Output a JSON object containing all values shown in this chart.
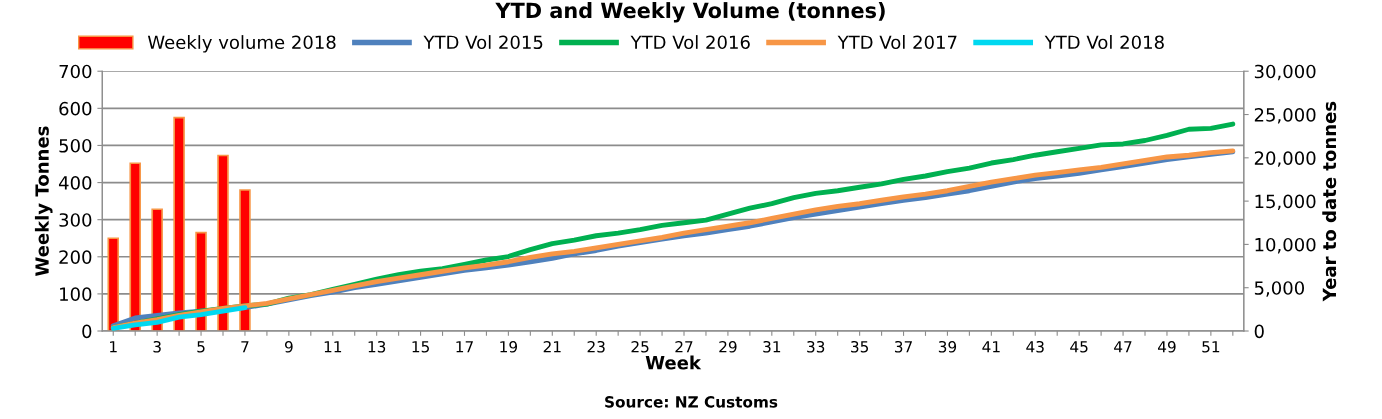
{
  "chart_data": {
    "type": "line",
    "title": "YTD and Weekly Volume (tonnes)",
    "xlabel": "Week",
    "ylabel": "Weekly Tonnes",
    "y2label": "Year to date tonnes",
    "annotations": [
      "Source: NZ Customs"
    ],
    "categories": [
      "1",
      null,
      "3",
      null,
      "5",
      null,
      "7",
      null,
      "9",
      null,
      "11",
      null,
      "13",
      null,
      "15",
      null,
      "17",
      null,
      "19",
      null,
      "21",
      null,
      "23",
      null,
      "25",
      null,
      "27",
      null,
      "29",
      null,
      "31",
      null,
      "33",
      null,
      "35",
      null,
      "37",
      null,
      "39",
      null,
      "41",
      null,
      "43",
      null,
      "45",
      null,
      "47",
      null,
      "49",
      null,
      "51",
      null
    ],
    "ylim": [
      0,
      700
    ],
    "yticks": [
      0,
      100,
      200,
      300,
      400,
      500,
      600,
      700
    ],
    "y2lim": [
      0,
      30000
    ],
    "y2ticks": [
      {
        "value": 0,
        "label": "0"
      },
      {
        "value": 5000,
        "label": "5,000"
      },
      {
        "value": 10000,
        "label": "10,000"
      },
      {
        "value": 15000,
        "label": "15,000"
      },
      {
        "value": 20000,
        "label": "20,000"
      },
      {
        "value": 25000,
        "label": "25,000"
      },
      {
        "value": 30000,
        "label": "30,000"
      }
    ],
    "grid": "y",
    "legend": "top",
    "marker": "none",
    "line_style": "solid",
    "series": [
      {
        "name": "Weekly volume 2018",
        "type": "bar",
        "color": "#ff0000",
        "values": [
          250,
          452,
          328,
          575,
          265,
          473,
          380,
          null,
          null,
          null,
          null,
          null,
          null,
          null,
          null,
          null,
          null,
          null,
          null,
          null,
          null,
          null,
          null,
          null,
          null,
          null,
          null,
          null,
          null,
          null,
          null,
          null,
          null,
          null,
          null,
          null,
          null,
          null,
          null,
          null,
          null,
          null,
          null,
          null,
          null,
          null,
          null,
          null,
          null,
          null,
          null,
          null
        ]
      },
      {
        "name": "YTD Vol 2015",
        "axis": "y2",
        "color": "#4f81bd",
        "values": [
          600,
          1500,
          1800,
          2100,
          2300,
          2500,
          2700,
          3100,
          3600,
          4100,
          4500,
          5000,
          5400,
          5800,
          6200,
          6600,
          7000,
          7300,
          7600,
          8000,
          8400,
          8900,
          9300,
          9800,
          10200,
          10600,
          11000,
          11300,
          11700,
          12100,
          12600,
          13100,
          13500,
          13900,
          14300,
          14700,
          15100,
          15400,
          15800,
          16200,
          16700,
          17200,
          17600,
          17900,
          18200,
          18600,
          19000,
          19400,
          19800,
          20100,
          20400,
          20700
        ]
      },
      {
        "name": "YTD Vol 2016",
        "axis": "y2",
        "color": "#00b050",
        "values": [
          400,
          900,
          1400,
          1900,
          2300,
          2600,
          2900,
          3100,
          3800,
          4200,
          4800,
          5400,
          6000,
          6500,
          6900,
          7200,
          7700,
          8200,
          8600,
          9400,
          10100,
          10500,
          11000,
          11300,
          11700,
          12200,
          12500,
          12800,
          13500,
          14200,
          14700,
          15400,
          15900,
          16200,
          16600,
          17000,
          17500,
          17900,
          18400,
          18800,
          19400,
          19800,
          20300,
          20700,
          21100,
          21500,
          21600,
          22000,
          22600,
          23300,
          23400,
          23900
        ]
      },
      {
        "name": "YTD Vol 2017",
        "axis": "y2",
        "color": "#f79646",
        "values": [
          400,
          900,
          1300,
          1800,
          2200,
          2600,
          2900,
          3200,
          3700,
          4200,
          4700,
          5200,
          5700,
          6100,
          6500,
          6900,
          7300,
          7600,
          8000,
          8500,
          8900,
          9200,
          9600,
          10000,
          10400,
          10800,
          11300,
          11700,
          12100,
          12500,
          13000,
          13500,
          14000,
          14400,
          14700,
          15100,
          15500,
          15800,
          16200,
          16700,
          17200,
          17600,
          18000,
          18300,
          18600,
          18900,
          19300,
          19700,
          20100,
          20300,
          20600,
          20800
        ]
      },
      {
        "name": "YTD Vol 2018",
        "axis": "y2",
        "color": "#00d8f0",
        "values": [
          300,
          700,
          1000,
          1600,
          1900,
          2300,
          2700,
          null,
          null,
          null,
          null,
          null,
          null,
          null,
          null,
          null,
          null,
          null,
          null,
          null,
          null,
          null,
          null,
          null,
          null,
          null,
          null,
          null,
          null,
          null,
          null,
          null,
          null,
          null,
          null,
          null,
          null,
          null,
          null,
          null,
          null,
          null,
          null,
          null,
          null,
          null,
          null,
          null,
          null,
          null,
          null,
          null
        ]
      }
    ]
  }
}
